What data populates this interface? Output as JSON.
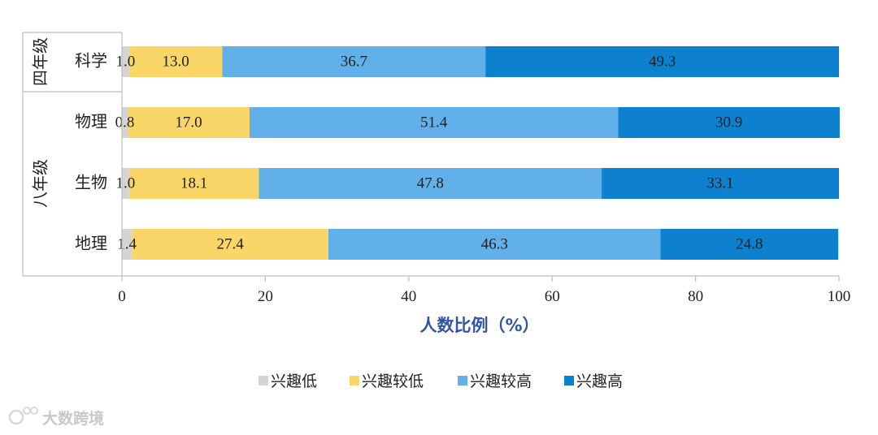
{
  "chart_data": {
    "type": "bar",
    "orientation": "horizontal",
    "stacked": true,
    "groups": [
      {
        "label": "四年级",
        "categories": [
          "科学"
        ]
      },
      {
        "label": "八年级",
        "categories": [
          "物理",
          "生物",
          "地理"
        ]
      }
    ],
    "categories": [
      "科学",
      "物理",
      "生物",
      "地理"
    ],
    "series": [
      {
        "name": "兴趣低",
        "color": "#d4d4d4",
        "values": [
          1.0,
          0.8,
          1.0,
          1.4
        ]
      },
      {
        "name": "兴趣较低",
        "color": "#fad567",
        "values": [
          13.0,
          17.0,
          18.1,
          27.4
        ]
      },
      {
        "name": "兴趣较高",
        "color": "#62b0ea",
        "values": [
          36.7,
          51.4,
          47.8,
          46.3
        ]
      },
      {
        "name": "兴趣高",
        "color": "#0d80d0",
        "values": [
          49.3,
          30.9,
          33.1,
          24.8
        ]
      }
    ],
    "xlabel": "人数比例（%）",
    "ylabel": "",
    "xlim": [
      0,
      100
    ],
    "xticks": [
      0,
      20,
      40,
      60,
      80,
      100
    ],
    "grid": false,
    "legend_position": "bottom"
  },
  "watermark": "大数跨境"
}
